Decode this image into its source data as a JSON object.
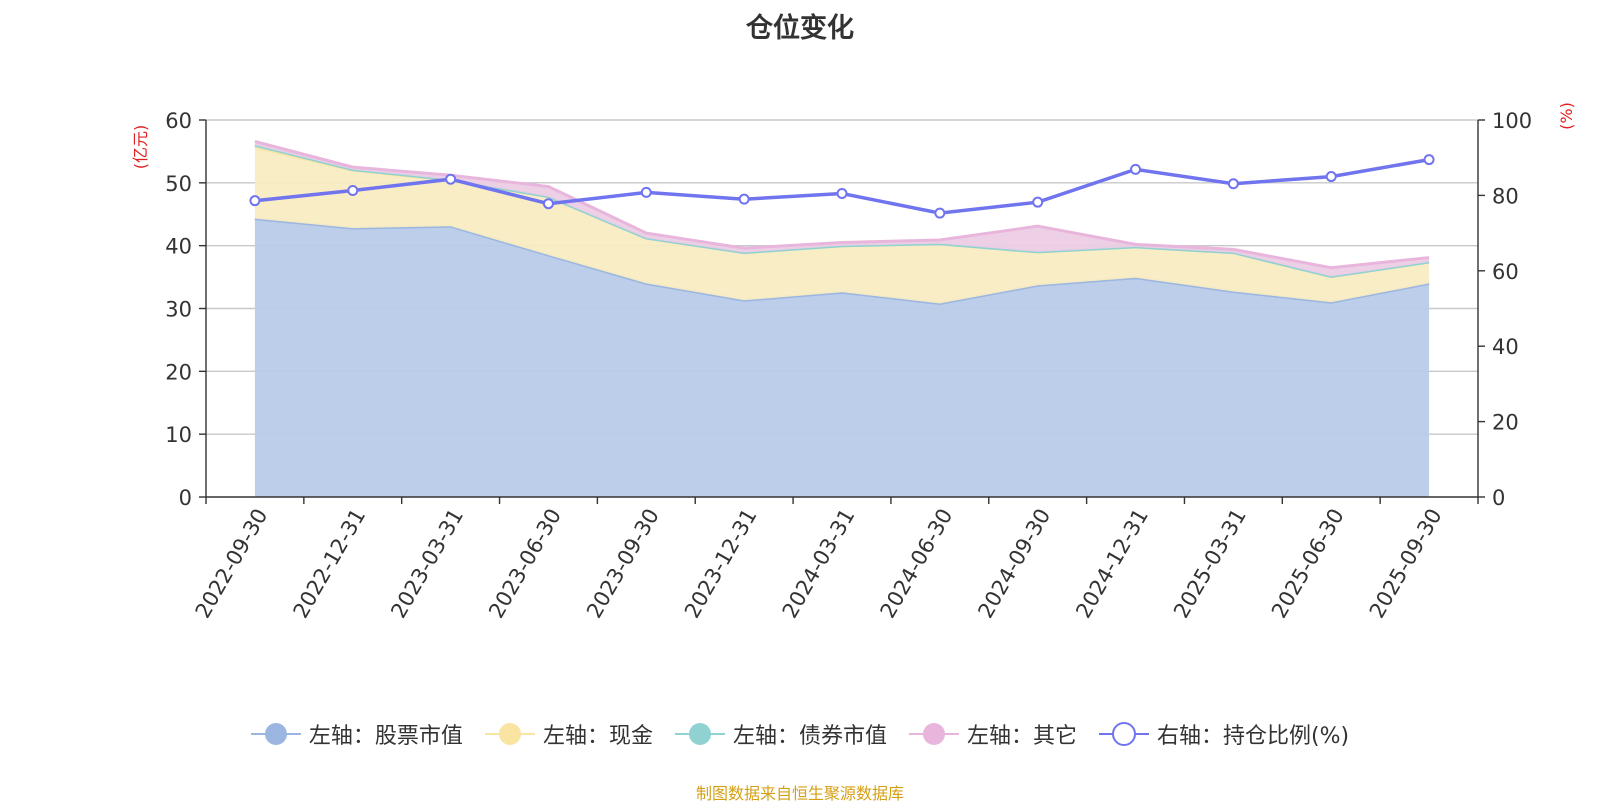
{
  "title": "仓位变化",
  "source_note": "制图数据来自恒生聚源数据库",
  "chart_data": {
    "type": "area",
    "title": "仓位变化",
    "categories": [
      "2022-09-30",
      "2022-12-31",
      "2023-03-31",
      "2023-06-30",
      "2023-09-30",
      "2023-12-31",
      "2024-03-31",
      "2024-06-30",
      "2024-09-30",
      "2024-12-31",
      "2025-03-31",
      "2025-06-30",
      "2025-09-30"
    ],
    "left_axis": {
      "unit": "(亿元)",
      "min": 0,
      "max": 60,
      "ticks": [
        "0",
        "10",
        "20",
        "30",
        "40",
        "50",
        "60"
      ]
    },
    "right_axis": {
      "unit": "(%)",
      "min": 0,
      "max": 100,
      "ticks": [
        "0",
        "20",
        "40",
        "60",
        "80",
        "100"
      ]
    },
    "series": [
      {
        "name": "左轴：股票市值",
        "axis": "left",
        "kind": "stacked-area",
        "color": "#9bb6e0",
        "fill": "#b8cbe9",
        "values": [
          44.3,
          42.8,
          43.1,
          38.5,
          34.0,
          31.3,
          32.6,
          30.8,
          33.7,
          34.9,
          32.7,
          31.0,
          34.0
        ]
      },
      {
        "name": "左轴：现金",
        "axis": "left",
        "kind": "stacked-area",
        "color": "#f9e4a2",
        "fill": "#f8ecc2",
        "values": [
          11.4,
          9.2,
          7.3,
          9.3,
          7.2,
          7.6,
          7.4,
          9.5,
          5.3,
          4.9,
          6.2,
          4.1,
          3.4
        ]
      },
      {
        "name": "左轴：债券市值",
        "axis": "left",
        "kind": "stacked-area",
        "color": "#90d2d2",
        "fill": "#c5e6e6",
        "values": [
          0.3,
          0.1,
          0.1,
          0,
          0,
          0,
          0,
          0,
          0,
          0,
          0,
          0,
          0
        ]
      },
      {
        "name": "左轴：其它",
        "axis": "left",
        "kind": "stacked-area",
        "color": "#e8b6dc",
        "fill": "#edcde5",
        "values": [
          0.6,
          0.4,
          0.7,
          1.6,
          0.8,
          0.7,
          0.5,
          0.6,
          4.1,
          0.4,
          0.5,
          1.4,
          0.7
        ]
      },
      {
        "name": "右轴：持仓比例(%)",
        "axis": "right",
        "kind": "line",
        "color": "#7074ee",
        "values": [
          78.6,
          81.3,
          84.3,
          77.8,
          80.8,
          79.0,
          80.5,
          75.3,
          78.2,
          86.9,
          83.1,
          85.0,
          89.5
        ]
      }
    ]
  }
}
